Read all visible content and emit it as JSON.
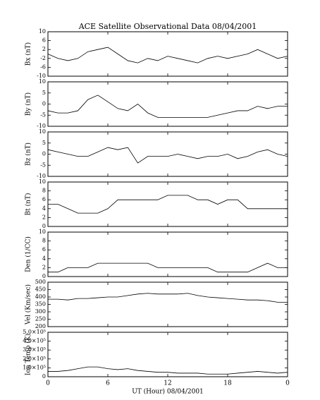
{
  "title": "ACE Satellite Observational Data   08/04/2001",
  "chart_data": [
    {
      "type": "line",
      "y_label": "Bx (nT)",
      "xlim": [
        0,
        24
      ],
      "xticks": [
        0,
        6,
        12,
        18,
        {
          "value": 24,
          "label": "0"
        }
      ],
      "ylim": [
        -10,
        10
      ],
      "yticks": [
        -10,
        -6,
        -2,
        2,
        6,
        10
      ],
      "x": [
        0,
        1,
        2,
        3,
        4,
        5,
        6,
        7,
        8,
        9,
        10,
        11,
        12,
        13,
        14,
        15,
        16,
        17,
        18,
        19,
        20,
        21,
        22,
        23,
        24
      ],
      "series": [
        {
          "color": "#000000",
          "values": [
            0,
            -2,
            -3,
            -2,
            1,
            2,
            3,
            0,
            -3,
            -4,
            -2,
            -3,
            -1,
            -2,
            -3,
            -4,
            -2,
            -1,
            -2,
            -1,
            0,
            2,
            0,
            -2,
            -1
          ]
        }
      ]
    },
    {
      "type": "line",
      "y_label": "By (nT)",
      "xlim": [
        0,
        24
      ],
      "xticks": [
        0,
        6,
        12,
        18,
        {
          "value": 24,
          "label": "0"
        }
      ],
      "ylim": [
        -10,
        10
      ],
      "yticks": [
        -10,
        -5,
        0,
        5,
        10
      ],
      "x": [
        0,
        1,
        2,
        3,
        4,
        5,
        6,
        7,
        8,
        9,
        10,
        11,
        12,
        13,
        14,
        15,
        16,
        17,
        18,
        19,
        20,
        21,
        22,
        23,
        24
      ],
      "series": [
        {
          "color": "#000000",
          "values": [
            -3,
            -4,
            -4,
            -3,
            2,
            4,
            1,
            -2,
            -3,
            0,
            -4,
            -6,
            -6,
            -6,
            -6,
            -6,
            -6,
            -5,
            -4,
            -3,
            -3,
            -1,
            -2,
            -1,
            -1
          ]
        }
      ]
    },
    {
      "type": "line",
      "y_label": "Bz (nT)",
      "xlim": [
        0,
        24
      ],
      "xticks": [
        0,
        6,
        12,
        18,
        {
          "value": 24,
          "label": "0"
        }
      ],
      "ylim": [
        -10,
        10
      ],
      "yticks": [
        -10,
        -5,
        0,
        5,
        10
      ],
      "x": [
        0,
        1,
        2,
        3,
        4,
        5,
        6,
        7,
        8,
        9,
        10,
        11,
        12,
        13,
        14,
        15,
        16,
        17,
        18,
        19,
        20,
        21,
        22,
        23,
        24
      ],
      "series": [
        {
          "color": "#000000",
          "values": [
            2,
            1,
            0,
            -1,
            -1,
            1,
            3,
            2,
            3,
            -4,
            -1,
            -1,
            -1,
            0,
            -1,
            -2,
            -1,
            -1,
            0,
            -2,
            -1,
            1,
            2,
            0,
            -1
          ]
        }
      ]
    },
    {
      "type": "line",
      "y_label": "Bt (nT)",
      "xlim": [
        0,
        24
      ],
      "xticks": [
        0,
        6,
        12,
        18,
        {
          "value": 24,
          "label": "0"
        }
      ],
      "ylim": [
        0,
        10
      ],
      "yticks": [
        0,
        2,
        4,
        6,
        8,
        10
      ],
      "x": [
        0,
        1,
        2,
        3,
        4,
        5,
        6,
        7,
        8,
        9,
        10,
        11,
        12,
        13,
        14,
        15,
        16,
        17,
        18,
        19,
        20,
        21,
        22,
        23,
        24
      ],
      "series": [
        {
          "color": "#000000",
          "values": [
            5,
            5,
            4,
            3,
            3,
            3,
            4,
            6,
            6,
            6,
            6,
            6,
            7,
            7,
            7,
            6,
            6,
            5,
            6,
            6,
            4,
            4,
            4,
            4,
            4
          ]
        }
      ]
    },
    {
      "type": "line",
      "y_label": "Den (1/CC)",
      "xlim": [
        0,
        24
      ],
      "xticks": [
        0,
        6,
        12,
        18,
        {
          "value": 24,
          "label": "0"
        }
      ],
      "ylim": [
        0,
        10
      ],
      "yticks": [
        0,
        2,
        4,
        6,
        8,
        10
      ],
      "x": [
        0,
        1,
        2,
        3,
        4,
        5,
        6,
        7,
        8,
        9,
        10,
        11,
        12,
        13,
        14,
        15,
        16,
        17,
        18,
        19,
        20,
        21,
        22,
        23,
        24
      ],
      "series": [
        {
          "color": "#000000",
          "values": [
            1,
            1,
            2,
            2,
            2,
            3,
            3,
            3,
            3,
            3,
            3,
            2,
            2,
            2,
            2,
            2,
            2,
            1,
            1,
            1,
            1,
            2,
            3,
            2,
            2
          ]
        }
      ]
    },
    {
      "type": "line",
      "y_label": "Vel (Km/sec)",
      "xlim": [
        0,
        24
      ],
      "xticks": [
        0,
        6,
        12,
        18,
        {
          "value": 24,
          "label": "0"
        }
      ],
      "ylim": [
        200,
        500
      ],
      "yticks": [
        200,
        250,
        300,
        350,
        400,
        450,
        500
      ],
      "x": [
        0,
        1,
        2,
        3,
        4,
        5,
        6,
        7,
        8,
        9,
        10,
        11,
        12,
        13,
        14,
        15,
        16,
        17,
        18,
        19,
        20,
        21,
        22,
        23,
        24
      ],
      "series": [
        {
          "color": "#000000",
          "values": [
            385,
            385,
            380,
            390,
            390,
            395,
            400,
            400,
            410,
            420,
            425,
            420,
            420,
            420,
            425,
            410,
            400,
            395,
            390,
            385,
            380,
            380,
            375,
            365,
            365
          ]
        }
      ]
    },
    {
      "type": "line",
      "y_label": "Ion Temp (K)",
      "x_label": "UT (Hour)  08/04/2001",
      "xlim": [
        0,
        24
      ],
      "xticks": [
        0,
        6,
        12,
        18,
        {
          "value": 24,
          "label": "0"
        }
      ],
      "ylim": [
        0,
        500000
      ],
      "yticks": [
        0,
        {
          "value": 100000,
          "label": "1.0×10⁵"
        },
        {
          "value": 200000,
          "label": "2.0×10⁵"
        },
        {
          "value": 300000,
          "label": "3.0×10⁵"
        },
        {
          "value": 400000,
          "label": "4.0×10⁵"
        },
        {
          "value": 500000,
          "label": "5.0×10⁵"
        }
      ],
      "x": [
        0,
        1,
        2,
        3,
        4,
        5,
        6,
        7,
        8,
        9,
        10,
        11,
        12,
        13,
        14,
        15,
        16,
        17,
        18,
        19,
        20,
        21,
        22,
        23,
        24
      ],
      "series": [
        {
          "color": "#000000",
          "values": [
            60000,
            60000,
            70000,
            90000,
            110000,
            110000,
            90000,
            80000,
            90000,
            70000,
            60000,
            50000,
            50000,
            40000,
            40000,
            40000,
            30000,
            30000,
            30000,
            40000,
            50000,
            60000,
            50000,
            40000,
            50000
          ]
        }
      ]
    }
  ]
}
